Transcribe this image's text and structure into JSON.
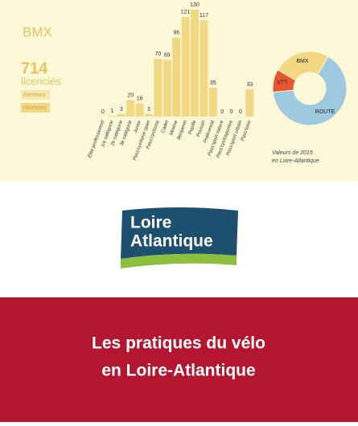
{
  "chart_data": [
    {
      "type": "bar",
      "title": "BMX",
      "total": "714",
      "total_label": "licenciés",
      "legend": [
        {
          "name": "Femmes",
          "color": "#f9e8ad"
        },
        {
          "name": "Hommes",
          "color": "#f3d884"
        }
      ],
      "categories": [
        "Élite professionnel",
        "1re catégorie",
        "2e catégorie",
        "3e catégorie",
        "Junior",
        "Pass'cyclisme open",
        "Pass'cyclisme",
        "Cadet",
        "Minime",
        "Benjamin",
        "Pupille",
        "Poussin",
        "Prélicencié",
        "Pass'sport nature",
        "Pass'cyclosportive",
        "Pass'sport urbain",
        "Pass'loisir"
      ],
      "values": [
        0,
        1,
        3,
        20,
        16,
        3,
        70,
        69,
        96,
        121,
        130,
        117,
        35,
        0,
        0,
        0,
        33
      ],
      "color": "#f3d884",
      "ylim": [
        0,
        130
      ]
    },
    {
      "type": "pie",
      "categories": [
        "ROUTE",
        "VTT",
        "BMX"
      ],
      "values": [
        65,
        10,
        25
      ],
      "colors": [
        "#9fc9df",
        "#e8562f",
        "#f3d884"
      ],
      "caption": [
        "Valeurs de 2015",
        "en Loire-Atlantique"
      ]
    }
  ],
  "logo": [
    "Loire",
    "Atlantique"
  ],
  "cover_title": [
    "Les pratiques du vélo",
    "en Loire-Atlantique"
  ]
}
